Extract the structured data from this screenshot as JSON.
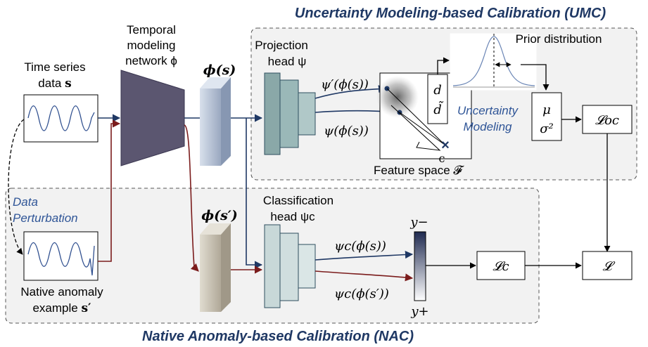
{
  "sections": {
    "umc_title": "Uncertainty Modeling-based Calibration (UMC)",
    "nac_title": "Native Anomaly-based Calibration (NAC)"
  },
  "input": {
    "line1": "Time series",
    "line2_prefix": "data ",
    "line2_symbol": "s"
  },
  "perturbation": {
    "line1": "Data",
    "line2": "Perturbation"
  },
  "anomaly": {
    "line1": "Native anomaly",
    "line2_prefix": "example ",
    "line2_symbol": "s′"
  },
  "temporal_net": {
    "line1": "Temporal",
    "line2": "modeling",
    "line3": "network ϕ"
  },
  "features": {
    "phi_s": "ϕ(s)",
    "phi_s_prime": "ϕ(s′)"
  },
  "projection_head": {
    "line1": "Projection",
    "line2": "head ψ",
    "out_top": "ψ′(ϕ(s))",
    "out_bottom": "ψ(ϕ(s))"
  },
  "feature_space": {
    "label": "Feature space 𝓕",
    "d": "d",
    "d_tilde": "d̃",
    "center": "c"
  },
  "prior": {
    "label": "Prior distribution"
  },
  "uncertainty": {
    "line1": "Uncertainty",
    "line2": "Modeling"
  },
  "mu_sigma": {
    "mu": "μ",
    "sigma": "σ²"
  },
  "losses": {
    "l_oc": "𝓛oc",
    "l_c": "𝓛c",
    "l": "𝓛"
  },
  "classification_head": {
    "line1": "Classification",
    "line2": "head ψc",
    "out_top": "ψc(ϕ(s))",
    "out_bottom": "ψc(ϕ(s′))"
  },
  "score_bar": {
    "top": "y−",
    "bottom": "y+"
  },
  "colors": {
    "blue_flow": "#1f3864",
    "red_flow": "#7b1c1c",
    "title_text": "#1f3864",
    "network": "#5b5670",
    "phi_s_fill": "#b8c4d8",
    "phi_s_prime_fill": "#c8c0b0",
    "proj_head": "#8aa8a8",
    "cls_head": "#c8d8d8"
  }
}
